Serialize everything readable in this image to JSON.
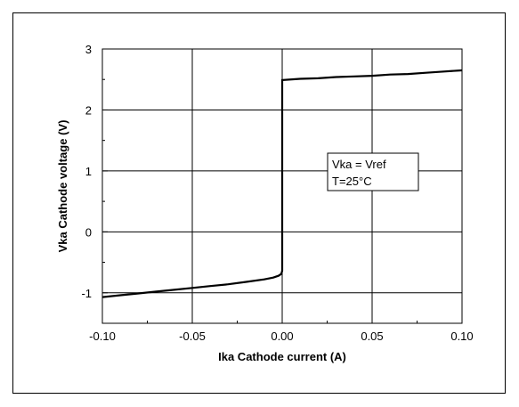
{
  "chart_data": {
    "type": "line",
    "xlabel": "Ika Cathode current (A)",
    "ylabel": "Vka Cathode voltage (V)",
    "xlim": [
      -0.1,
      0.1
    ],
    "ylim": [
      -1.5,
      3
    ],
    "x_ticks": [
      -0.1,
      -0.05,
      0.0,
      0.05,
      0.1
    ],
    "x_tick_labels": [
      "-0.10",
      "-0.05",
      "0.00",
      "0.05",
      "0.10"
    ],
    "y_ticks": [
      -1,
      0,
      1,
      2,
      3
    ],
    "y_tick_labels": [
      "-1",
      "0",
      "1",
      "2",
      "3"
    ],
    "grid": true,
    "annotations": [
      "Vka = Vref",
      "T=25°C"
    ],
    "series": [
      {
        "x": [
          -0.1,
          -0.09,
          -0.08,
          -0.07,
          -0.06,
          -0.05,
          -0.04,
          -0.03,
          -0.02,
          -0.01,
          -0.005,
          -0.002,
          -0.0005,
          0.0,
          0.0,
          0.01,
          0.02,
          0.03,
          0.04,
          0.05,
          0.06,
          0.07,
          0.08,
          0.09,
          0.1
        ],
        "y": [
          -1.07,
          -1.04,
          -1.01,
          -0.98,
          -0.95,
          -0.92,
          -0.89,
          -0.86,
          -0.82,
          -0.78,
          -0.75,
          -0.72,
          -0.69,
          -0.64,
          2.49,
          2.51,
          2.52,
          2.54,
          2.55,
          2.56,
          2.58,
          2.59,
          2.61,
          2.63,
          2.65
        ]
      }
    ]
  }
}
